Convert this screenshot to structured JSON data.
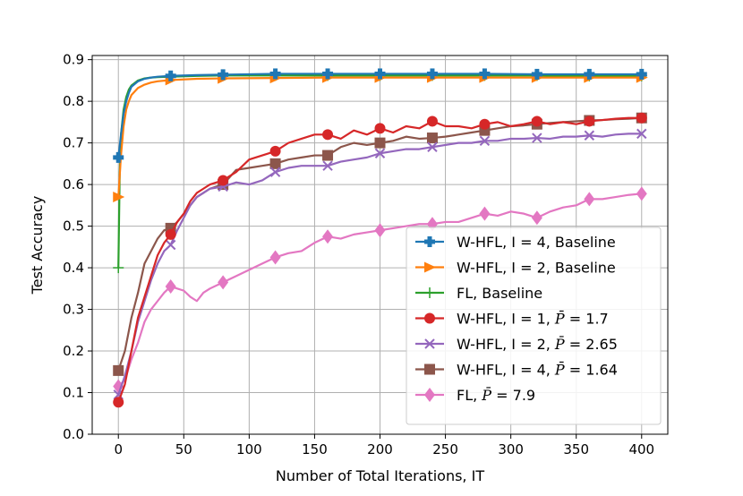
{
  "chart_data": {
    "type": "line",
    "title": "",
    "xlabel": "Number of Total Iterations, IT",
    "ylabel": "Test Accuracy",
    "xlim": [
      -20,
      420
    ],
    "ylim": [
      0,
      0.91
    ],
    "xticks": [
      0,
      50,
      100,
      150,
      200,
      250,
      300,
      350,
      400
    ],
    "yticks": [
      0.0,
      0.1,
      0.2,
      0.3,
      0.4,
      0.5,
      0.6,
      0.7,
      0.8,
      0.9
    ],
    "grid": true,
    "legend_position": "lower-right",
    "series": [
      {
        "name_prefix": "W-HFL, I = 4, Baseline",
        "name_param": "",
        "color": "#1f77b4",
        "marker": "plus-filled",
        "marker_x": [
          0,
          40,
          80,
          120,
          160,
          200,
          240,
          280,
          320,
          360,
          400
        ],
        "x": [
          0,
          2,
          4,
          6,
          8,
          10,
          15,
          20,
          25,
          30,
          40,
          60,
          80,
          120,
          160,
          200,
          240,
          280,
          320,
          360,
          400
        ],
        "y": [
          0.665,
          0.72,
          0.77,
          0.8,
          0.82,
          0.835,
          0.848,
          0.854,
          0.857,
          0.859,
          0.861,
          0.863,
          0.864,
          0.866,
          0.866,
          0.866,
          0.866,
          0.866,
          0.865,
          0.865,
          0.865
        ]
      },
      {
        "name_prefix": "W-HFL, I = 2, Baseline",
        "name_param": "",
        "color": "#ff7f0e",
        "marker": "triangle-right",
        "marker_x": [
          0,
          40,
          80,
          120,
          160,
          200,
          240,
          280,
          320,
          360,
          400
        ],
        "x": [
          0,
          2,
          4,
          6,
          8,
          10,
          15,
          20,
          25,
          30,
          40,
          60,
          80,
          120,
          160,
          200,
          240,
          280,
          320,
          360,
          400
        ],
        "y": [
          0.57,
          0.67,
          0.74,
          0.78,
          0.8,
          0.815,
          0.832,
          0.84,
          0.845,
          0.848,
          0.851,
          0.854,
          0.855,
          0.856,
          0.857,
          0.857,
          0.857,
          0.857,
          0.857,
          0.857,
          0.857
        ]
      },
      {
        "name_prefix": "FL, Baseline",
        "name_param": "",
        "color": "#2ca02c",
        "marker": "plus",
        "marker_x": [
          0,
          40,
          80,
          120,
          160,
          200,
          240,
          280,
          320,
          360,
          400
        ],
        "x": [
          0,
          1,
          2,
          4,
          6,
          8,
          10,
          15,
          20,
          25,
          30,
          40,
          60,
          80,
          120,
          160,
          200,
          240,
          280,
          320,
          360,
          400
        ],
        "y": [
          0.4,
          0.62,
          0.72,
          0.78,
          0.81,
          0.828,
          0.838,
          0.85,
          0.855,
          0.857,
          0.858,
          0.859,
          0.861,
          0.862,
          0.862,
          0.862,
          0.862,
          0.862,
          0.862,
          0.862,
          0.861,
          0.861
        ]
      },
      {
        "name_prefix": "W-HFL, I = 1, ",
        "name_param": "= 1.7",
        "color": "#d62728",
        "marker": "circle",
        "marker_x": [
          0,
          40,
          80,
          120,
          160,
          200,
          240,
          280,
          320,
          360,
          400
        ],
        "x": [
          0,
          5,
          10,
          15,
          20,
          25,
          30,
          35,
          40,
          45,
          50,
          55,
          60,
          65,
          70,
          80,
          90,
          100,
          110,
          120,
          130,
          140,
          150,
          160,
          170,
          180,
          190,
          200,
          210,
          220,
          230,
          240,
          250,
          260,
          270,
          280,
          290,
          300,
          310,
          320,
          330,
          340,
          350,
          360,
          370,
          380,
          390,
          400
        ],
        "y": [
          0.077,
          0.12,
          0.2,
          0.28,
          0.33,
          0.38,
          0.43,
          0.46,
          0.48,
          0.51,
          0.53,
          0.56,
          0.58,
          0.59,
          0.6,
          0.61,
          0.63,
          0.66,
          0.67,
          0.68,
          0.7,
          0.71,
          0.72,
          0.72,
          0.71,
          0.73,
          0.72,
          0.735,
          0.725,
          0.74,
          0.735,
          0.752,
          0.74,
          0.74,
          0.735,
          0.745,
          0.75,
          0.74,
          0.745,
          0.752,
          0.745,
          0.75,
          0.745,
          0.752,
          0.755,
          0.758,
          0.76,
          0.76
        ]
      },
      {
        "name_prefix": "W-HFL, I = 2, ",
        "name_param": "= 2.65",
        "color": "#9467bd",
        "marker": "x",
        "marker_x": [
          0,
          40,
          80,
          120,
          160,
          200,
          240,
          280,
          320,
          360,
          400
        ],
        "x": [
          0,
          5,
          10,
          15,
          20,
          25,
          30,
          35,
          40,
          45,
          50,
          55,
          60,
          65,
          70,
          80,
          90,
          100,
          110,
          120,
          130,
          140,
          150,
          160,
          170,
          180,
          190,
          200,
          210,
          220,
          230,
          240,
          250,
          260,
          270,
          280,
          290,
          300,
          310,
          320,
          330,
          340,
          350,
          360,
          370,
          380,
          390,
          400
        ],
        "y": [
          0.095,
          0.14,
          0.2,
          0.27,
          0.32,
          0.37,
          0.41,
          0.44,
          0.455,
          0.49,
          0.52,
          0.55,
          0.57,
          0.58,
          0.59,
          0.595,
          0.605,
          0.6,
          0.61,
          0.63,
          0.64,
          0.645,
          0.645,
          0.645,
          0.655,
          0.66,
          0.665,
          0.675,
          0.68,
          0.685,
          0.685,
          0.69,
          0.695,
          0.7,
          0.7,
          0.705,
          0.705,
          0.71,
          0.71,
          0.712,
          0.71,
          0.715,
          0.715,
          0.718,
          0.715,
          0.72,
          0.722,
          0.722
        ]
      },
      {
        "name_prefix": "W-HFL, I = 4, ",
        "name_param": "= 1.64",
        "color": "#8c564b",
        "marker": "square",
        "marker_x": [
          0,
          40,
          80,
          120,
          160,
          200,
          240,
          280,
          320,
          360,
          400
        ],
        "x": [
          0,
          5,
          10,
          15,
          20,
          25,
          30,
          35,
          40,
          45,
          50,
          55,
          60,
          65,
          70,
          80,
          90,
          100,
          110,
          120,
          130,
          140,
          150,
          160,
          170,
          180,
          190,
          200,
          210,
          220,
          230,
          240,
          250,
          260,
          270,
          280,
          290,
          300,
          310,
          320,
          330,
          340,
          350,
          360,
          370,
          380,
          390,
          400
        ],
        "y": [
          0.153,
          0.2,
          0.28,
          0.34,
          0.41,
          0.44,
          0.47,
          0.49,
          0.495,
          0.51,
          0.53,
          0.55,
          0.57,
          0.58,
          0.59,
          0.6,
          0.635,
          0.64,
          0.645,
          0.65,
          0.66,
          0.665,
          0.67,
          0.67,
          0.69,
          0.7,
          0.695,
          0.7,
          0.705,
          0.715,
          0.71,
          0.712,
          0.715,
          0.72,
          0.725,
          0.73,
          0.735,
          0.74,
          0.742,
          0.745,
          0.748,
          0.75,
          0.752,
          0.754,
          0.755,
          0.757,
          0.758,
          0.76
        ]
      },
      {
        "name_prefix": "FL, ",
        "name_param": "= 7.9",
        "color": "#e377c2",
        "marker": "diamond",
        "marker_x": [
          0,
          40,
          80,
          120,
          160,
          200,
          240,
          280,
          320,
          360,
          400
        ],
        "x": [
          0,
          5,
          10,
          15,
          20,
          25,
          30,
          35,
          40,
          45,
          50,
          55,
          60,
          65,
          70,
          80,
          90,
          100,
          110,
          120,
          130,
          140,
          150,
          160,
          170,
          180,
          190,
          200,
          210,
          220,
          230,
          240,
          250,
          260,
          270,
          280,
          290,
          300,
          310,
          320,
          330,
          340,
          350,
          360,
          370,
          380,
          390,
          400
        ],
        "y": [
          0.115,
          0.13,
          0.18,
          0.22,
          0.27,
          0.3,
          0.32,
          0.34,
          0.355,
          0.35,
          0.345,
          0.33,
          0.32,
          0.34,
          0.35,
          0.365,
          0.38,
          0.395,
          0.41,
          0.425,
          0.435,
          0.44,
          0.46,
          0.475,
          0.47,
          0.48,
          0.485,
          0.49,
          0.495,
          0.5,
          0.505,
          0.505,
          0.51,
          0.51,
          0.52,
          0.53,
          0.525,
          0.535,
          0.53,
          0.52,
          0.535,
          0.545,
          0.55,
          0.565,
          0.565,
          0.57,
          0.575,
          0.578
        ]
      }
    ]
  }
}
